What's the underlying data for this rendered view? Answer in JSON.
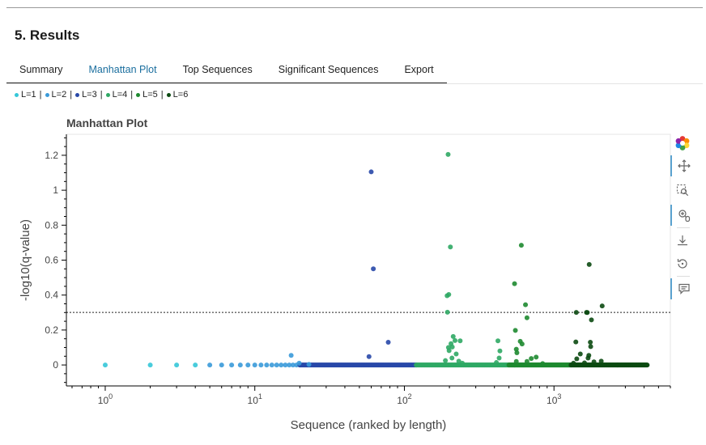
{
  "section": {
    "title": "5. Results"
  },
  "tabs": [
    {
      "label": "Summary"
    },
    {
      "label": "Manhattan Plot"
    },
    {
      "label": "Top Sequences"
    },
    {
      "label": "Significant Sequences"
    },
    {
      "label": "Export"
    }
  ],
  "active_tab": "Manhattan Plot",
  "legend": [
    {
      "label": "L=1",
      "color": "#35c7d8"
    },
    {
      "label": "L=2",
      "color": "#3a9ad9"
    },
    {
      "label": "L=3",
      "color": "#2848a8"
    },
    {
      "label": "L=4",
      "color": "#2fa864"
    },
    {
      "label": "L=5",
      "color": "#1e8a30"
    },
    {
      "label": "L=6",
      "color": "#0c4a12"
    }
  ],
  "toolbar": {
    "items": [
      {
        "icon": "bokeh-logo-icon"
      },
      {
        "icon": "pan-icon",
        "active": true
      },
      {
        "icon": "box-zoom-icon",
        "active": false
      },
      {
        "icon": "wheel-zoom-icon",
        "active": true
      },
      {
        "icon": "save-icon",
        "active": false
      },
      {
        "icon": "reset-icon",
        "active": false
      },
      {
        "icon": "hover-icon",
        "active": true
      }
    ]
  },
  "chart_data": {
    "type": "scatter",
    "title": "Manhattan Plot",
    "xlabel": "Sequence (ranked by length)",
    "ylabel": "-log10(q-value)",
    "x_scale": "log",
    "xlim": [
      0.55,
      6000
    ],
    "ylim": [
      -0.12,
      1.32
    ],
    "x_ticks": [
      {
        "value": 1,
        "label": "10^0"
      },
      {
        "value": 10,
        "label": "10^1"
      },
      {
        "value": 100,
        "label": "10^2"
      },
      {
        "value": 1000,
        "label": "10^3"
      }
    ],
    "y_ticks": [
      {
        "value": 0,
        "label": "0"
      },
      {
        "value": 0.2,
        "label": "0.2"
      },
      {
        "value": 0.4,
        "label": "0.4"
      },
      {
        "value": 0.6,
        "label": "0.6"
      },
      {
        "value": 0.8,
        "label": "0.8"
      },
      {
        "value": 1,
        "label": "1"
      },
      {
        "value": 1.2,
        "label": "1.2"
      }
    ],
    "threshold": 0.301,
    "grid": false,
    "legend_placement": "top-left, above plot",
    "series": [
      {
        "name": "L=1",
        "color": "#35c7d8",
        "baseline_range": [
          1,
          4
        ],
        "points": []
      },
      {
        "name": "L=2",
        "color": "#3a9ad9",
        "baseline_range": [
          5,
          20
        ],
        "points": [
          [
            17.5,
            0.055
          ],
          [
            19.8,
            0.01
          ],
          [
            23,
            0.003
          ]
        ]
      },
      {
        "name": "L=3",
        "color": "#2848a8",
        "baseline_range": [
          20,
          120
        ],
        "points": [
          [
            60,
            1.105
          ],
          [
            62,
            0.55
          ],
          [
            58,
            0.048
          ],
          [
            78,
            0.13
          ]
        ]
      },
      {
        "name": "L=4",
        "color": "#2fa864",
        "baseline_range": [
          120,
          500
        ],
        "points": [
          [
            196,
            1.205
          ],
          [
            203,
            0.675
          ],
          [
            193,
            0.396
          ],
          [
            198,
            0.403
          ],
          [
            194,
            0.302
          ],
          [
            212,
            0.163
          ],
          [
            218,
            0.14
          ],
          [
            236,
            0.138
          ],
          [
            205,
            0.122
          ],
          [
            197,
            0.1
          ],
          [
            199,
            0.082
          ],
          [
            209,
            0.103
          ],
          [
            222,
            0.063
          ],
          [
            231,
            0.022
          ],
          [
            188,
            0.025
          ],
          [
            208,
            0.04
          ],
          [
            244,
            0.01
          ],
          [
            422,
            0.138
          ],
          [
            435,
            0.08
          ],
          [
            430,
            0.04
          ],
          [
            412,
            0.014
          ]
        ]
      },
      {
        "name": "L=5",
        "color": "#1e8a30",
        "baseline_range": [
          500,
          1300
        ],
        "points": [
          [
            605,
            0.685
          ],
          [
            545,
            0.465
          ],
          [
            645,
            0.345
          ],
          [
            660,
            0.27
          ],
          [
            552,
            0.198
          ],
          [
            595,
            0.135
          ],
          [
            612,
            0.12
          ],
          [
            560,
            0.09
          ],
          [
            565,
            0.07
          ],
          [
            760,
            0.045
          ],
          [
            705,
            0.037
          ],
          [
            560,
            0.02
          ],
          [
            660,
            0.02
          ],
          [
            840,
            0.008
          ]
        ]
      },
      {
        "name": "L=6",
        "color": "#0c4a12",
        "baseline_range": [
          1300,
          4200
        ],
        "points": [
          [
            1720,
            0.575
          ],
          [
            2100,
            0.338
          ],
          [
            1410,
            0.301
          ],
          [
            1650,
            0.301
          ],
          [
            1780,
            0.258
          ],
          [
            1670,
            0.3
          ],
          [
            1400,
            0.132
          ],
          [
            1750,
            0.13
          ],
          [
            1760,
            0.105
          ],
          [
            1500,
            0.063
          ],
          [
            1710,
            0.055
          ],
          [
            1690,
            0.04
          ],
          [
            1420,
            0.035
          ],
          [
            2070,
            0.022
          ],
          [
            1850,
            0.018
          ],
          [
            1600,
            0.012
          ],
          [
            1350,
            0.01
          ]
        ]
      }
    ]
  }
}
